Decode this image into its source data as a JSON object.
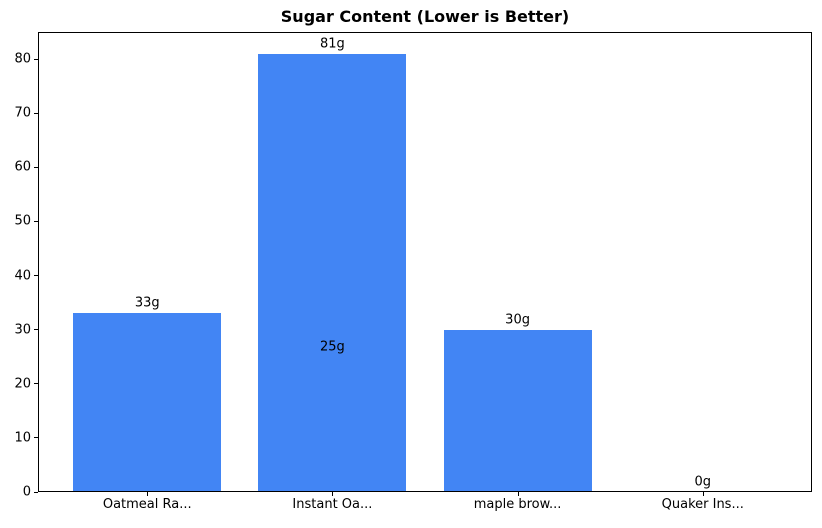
{
  "chart_data": {
    "type": "bar",
    "title": "Sugar Content (Lower is Better)",
    "categories": [
      "Oatmeal Ra...",
      "Instant Oa...",
      "maple brow...",
      "Quaker Ins..."
    ],
    "values": [
      33,
      81,
      30,
      0
    ],
    "bar_labels": [
      "33g",
      "81g",
      "30g",
      "0g"
    ],
    "annotations": [
      {
        "text": "25g",
        "x_index": 1,
        "y_value": 25
      }
    ],
    "xlabel": "",
    "ylabel": "",
    "ylim": [
      0,
      85
    ],
    "yticks": [
      0,
      10,
      20,
      30,
      40,
      50,
      60,
      70,
      80
    ],
    "grid": false,
    "legend_position": "none",
    "bar_color": "#4285F4",
    "axis_color": "#000000",
    "text_color": "#000000",
    "background_color": "#ffffff"
  }
}
